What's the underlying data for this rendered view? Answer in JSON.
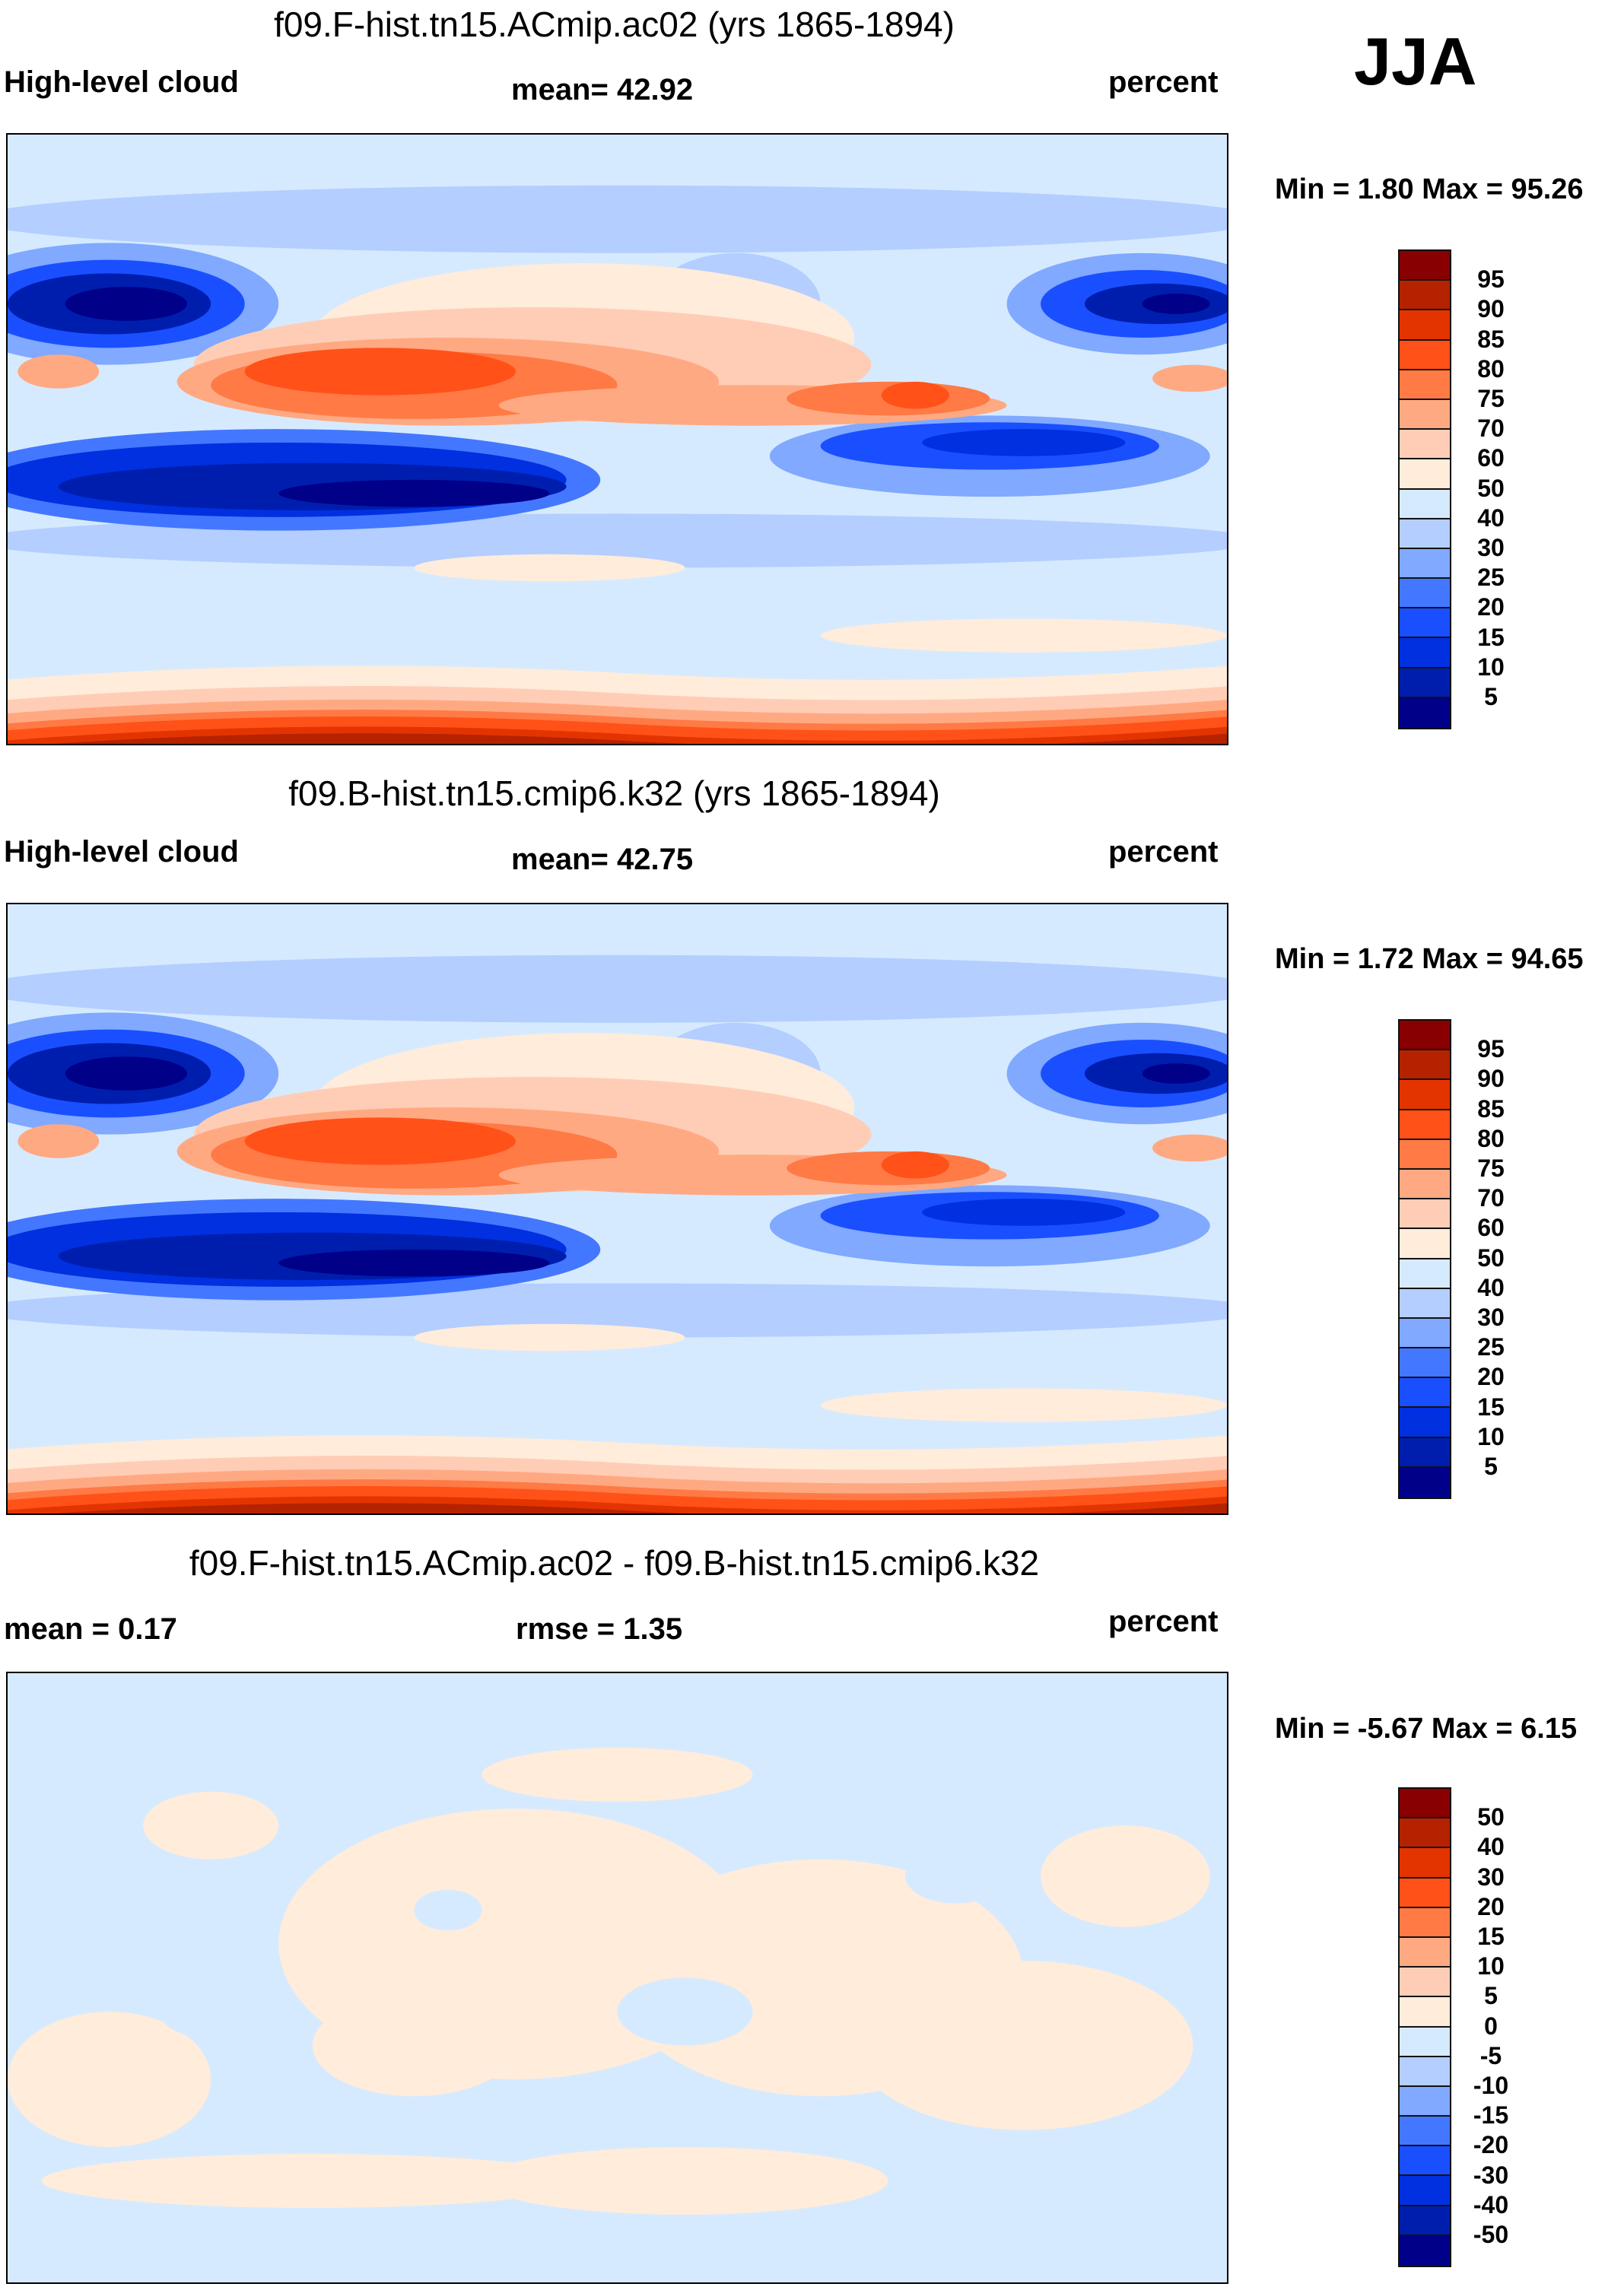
{
  "season": "JJA",
  "colors": [
    "#880000",
    "#b52200",
    "#e33400",
    "#ff5118",
    "#ff7a45",
    "#ffa983",
    "#ffcdb5",
    "#ffecdb",
    "#d6eaff",
    "#b3ceff",
    "#80a9ff",
    "#4477ff",
    "#1a4fff",
    "#0030e0",
    "#001eae",
    "#000088"
  ],
  "chart_data": [
    {
      "type": "heatmap",
      "title": "f09.F-hist.tn15.ACmip.ac02 (yrs 1865-1894)",
      "left_label": "High-level cloud",
      "center_label": "mean=  42.92",
      "units": "percent",
      "minmax": "Min =   1.80 Max =  95.26",
      "levels": [
        "95",
        "90",
        "85",
        "80",
        "75",
        "70",
        "60",
        "50",
        "40",
        "30",
        "25",
        "20",
        "15",
        "10",
        "5"
      ]
    },
    {
      "type": "heatmap",
      "title": "f09.B-hist.tn15.cmip6.k32 (yrs 1865-1894)",
      "left_label": "High-level cloud",
      "center_label": "mean=  42.75",
      "units": "percent",
      "minmax": "Min =   1.72 Max =  94.65",
      "levels": [
        "95",
        "90",
        "85",
        "80",
        "75",
        "70",
        "60",
        "50",
        "40",
        "30",
        "25",
        "20",
        "15",
        "10",
        "5"
      ]
    },
    {
      "type": "heatmap",
      "title": "f09.F-hist.tn15.ACmip.ac02 - f09.B-hist.tn15.cmip6.k32",
      "left_label": "mean =   0.17",
      "center_label": "rmse =   1.35",
      "units": "percent",
      "minmax": "Min =  -5.67 Max =   6.15",
      "levels": [
        "50",
        "40",
        "30",
        "20",
        "15",
        "10",
        "5",
        "0",
        "-5",
        "-10",
        "-15",
        "-20",
        "-30",
        "-40",
        "-50"
      ]
    }
  ]
}
